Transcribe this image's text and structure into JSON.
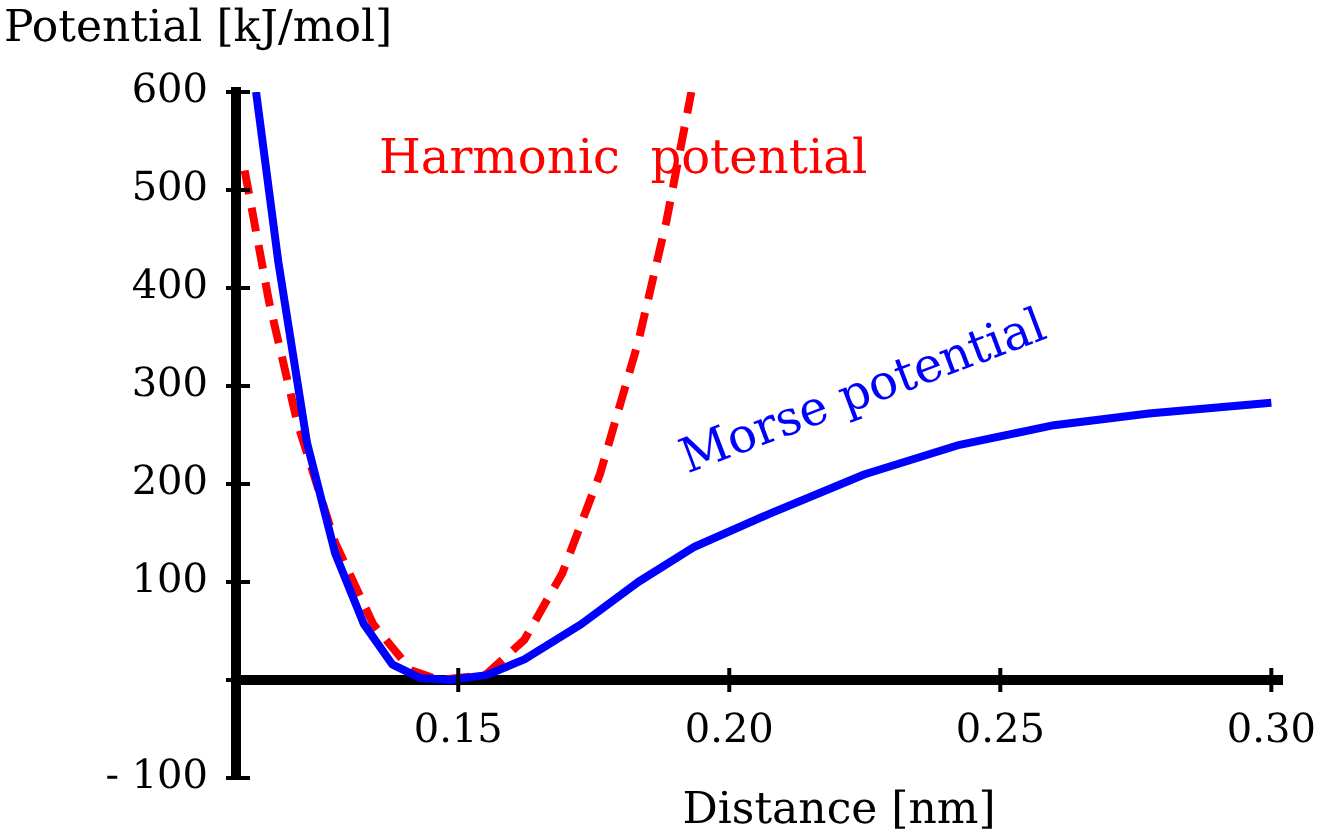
{
  "chart_data": {
    "type": "line",
    "xlabel": "Distance [nm]",
    "ylabel": "Potential [kJ/mol]",
    "xlim": [
      0.109,
      0.302
    ],
    "ylim": [
      -100,
      600
    ],
    "xticks": [
      {
        "value": 0.15,
        "label": "0.15"
      },
      {
        "value": 0.2,
        "label": "0.20"
      },
      {
        "value": 0.25,
        "label": "0.25"
      },
      {
        "value": 0.3,
        "label": "0.30"
      }
    ],
    "yticks": [
      {
        "value": -100,
        "label": "- 100"
      },
      {
        "value": 0,
        "label": null
      },
      100,
      200,
      300,
      400,
      500,
      600
    ],
    "grid": false,
    "legend": false,
    "marker": "none",
    "series": [
      {
        "color": "#0000ff",
        "line_style": "solid",
        "x": [
          0.1127,
          0.1168,
          0.1221,
          0.1273,
          0.1326,
          0.1378,
          0.143,
          0.1483,
          0.1552,
          0.1622,
          0.1727,
          0.1832,
          0.1936,
          0.2076,
          0.225,
          0.2425,
          0.2599,
          0.2774,
          0.3
        ],
        "values": [
          600,
          427,
          242,
          129,
          57,
          16,
          2,
          0,
          5,
          21,
          57,
          100,
          136,
          170,
          210,
          240,
          260,
          272,
          283
        ]
      },
      {
        "color": "#ff0000",
        "line_style": "dashed",
        "x": [
          0.1106,
          0.1151,
          0.1203,
          0.1273,
          0.1343,
          0.1413,
          0.1465,
          0.1517,
          0.1552,
          0.1622,
          0.1692,
          0.1762,
          0.1832,
          0.1884,
          0.193
        ],
        "values": [
          520,
          386,
          263,
          140,
          57,
          10,
          0,
          3,
          6,
          41,
          109,
          211,
          345,
          468,
          600
        ]
      }
    ],
    "annotations": [
      "Morse potential",
      "Harmonic  potential"
    ]
  }
}
